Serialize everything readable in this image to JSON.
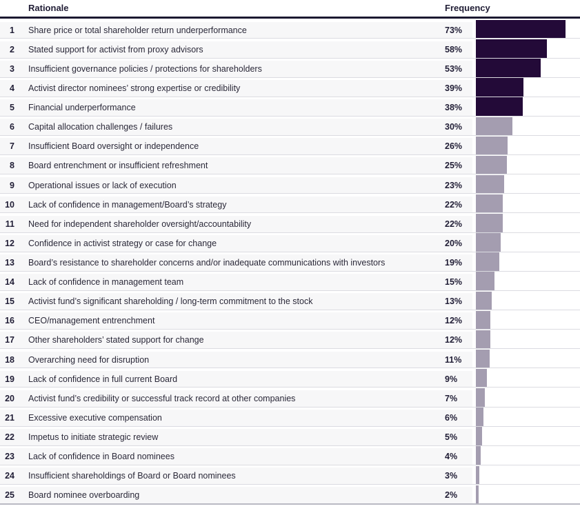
{
  "header": {
    "rationale_label": "Rationale",
    "frequency_label": "Frequency"
  },
  "colors": {
    "bar_highlight": "#230A38",
    "bar_normal": "#A49DB0",
    "header_rule": "#1B1830",
    "row_bg": "#F7F7F8",
    "divider": "#DBDBE1",
    "bottom_rule": "#B9B9C3",
    "text_dark": "#201D35",
    "text_body": "#2A2838"
  },
  "chart_data": {
    "type": "bar",
    "orientation": "horizontal",
    "title": "",
    "xlabel": "Frequency",
    "ylabel": "Rationale",
    "xlim": [
      0,
      85
    ],
    "grid": false,
    "legend": false,
    "highlight_top_n": 5,
    "ranks": [
      1,
      2,
      3,
      4,
      5,
      6,
      7,
      8,
      9,
      10,
      11,
      12,
      13,
      14,
      15,
      16,
      17,
      18,
      19,
      20,
      21,
      22,
      23,
      24,
      25
    ],
    "categories": [
      "Share price or total shareholder return underperformance",
      "Stated support for activist from proxy advisors",
      "Insufficient governance policies / protections for shareholders",
      "Activist director nominees’ strong expertise or credibility",
      "Financial underperformance",
      "Capital allocation challenges / failures",
      "Insufficient Board oversight or independence",
      "Board entrenchment or insufficient refreshment",
      "Operational issues or lack of execution",
      "Lack of confidence in management/Board’s strategy",
      "Need for independent shareholder oversight/accountability",
      "Confidence in activist strategy or case for change",
      "Board’s resistance to shareholder concerns and/or inadequate communications with investors",
      "Lack of confidence in management team",
      "Activist fund’s significant shareholding / long-term commitment to the stock",
      "CEO/management entrenchment",
      "Other shareholders’ stated support for change",
      "Overarching need for disruption",
      "Lack of confidence in full current Board",
      "Activist fund’s credibility or successful track record at other companies",
      "Excessive executive compensation",
      "Impetus to initiate strategic review",
      "Lack of confidence in Board nominees",
      "Insufficient shareholdings of Board or Board nominees",
      "Board nominee overboarding"
    ],
    "values": [
      73,
      58,
      53,
      39,
      38,
      30,
      26,
      25,
      23,
      22,
      22,
      20,
      19,
      15,
      13,
      12,
      12,
      11,
      9,
      7,
      6,
      5,
      4,
      3,
      2
    ],
    "value_labels": [
      "73%",
      "58%",
      "53%",
      "39%",
      "38%",
      "30%",
      "26%",
      "25%",
      "23%",
      "22%",
      "22%",
      "20%",
      "19%",
      "15%",
      "13%",
      "12%",
      "12%",
      "11%",
      "9%",
      "7%",
      "6%",
      "5%",
      "4%",
      "3%",
      "2%"
    ]
  }
}
